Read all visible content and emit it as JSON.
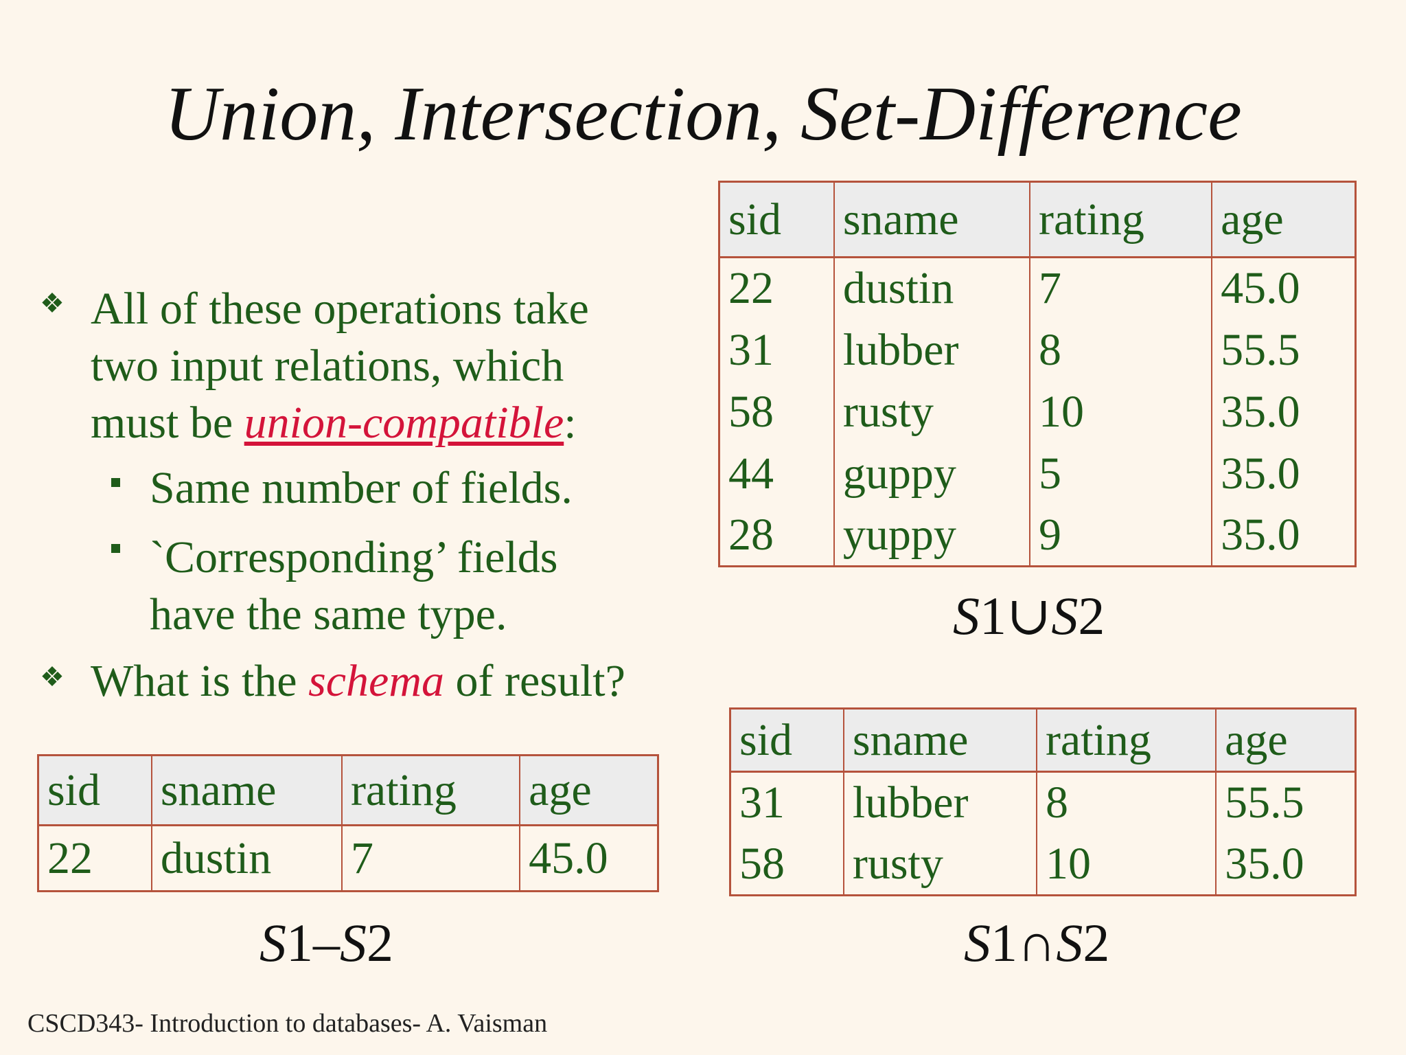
{
  "title": "Union, Intersection, Set-Difference",
  "bullets": {
    "b1": {
      "line1": "All of these operations take",
      "line2": "two input relations, which",
      "line3_pre": "must be ",
      "line3_emph": "union-compatible",
      "line3_post": ":"
    },
    "sub1": "Same number of fields.",
    "sub2_line1": "`Corresponding’ fields",
    "sub2_line2": "have the same type.",
    "b2_pre": "What is the ",
    "b2_emph": "schema",
    "b2_post": " of result?",
    "diamond_icon": "❖",
    "colors": {
      "text": "#1f5c1a",
      "emphasis": "#d4143a",
      "border": "#b5533c",
      "header_bg": "#ececec"
    }
  },
  "union_table": {
    "headers": [
      "sid",
      "sname",
      "rating",
      "age"
    ],
    "rows": [
      [
        "22",
        "dustin",
        "7",
        "45.0"
      ],
      [
        "31",
        "lubber",
        "8",
        "55.5"
      ],
      [
        "58",
        "rusty",
        "10",
        "35.0"
      ],
      [
        "44",
        "guppy",
        "5",
        "35.0"
      ],
      [
        "28",
        "yuppy",
        "9",
        "35.0"
      ]
    ],
    "caption": {
      "a": "S",
      "n1": "1",
      "op": "∪",
      "b": "S",
      "n2": "2"
    }
  },
  "difference_table": {
    "headers": [
      "sid",
      "sname",
      "rating",
      "age"
    ],
    "rows": [
      [
        "22",
        "dustin",
        "7",
        "45.0"
      ]
    ],
    "caption": {
      "a": "S",
      "n1": "1",
      "op": "–",
      "b": "S",
      "n2": "2"
    }
  },
  "intersection_table": {
    "headers": [
      "sid",
      "sname",
      "rating",
      "age"
    ],
    "rows": [
      [
        "31",
        "lubber",
        "8",
        "55.5"
      ],
      [
        "58",
        "rusty",
        "10",
        "35.0"
      ]
    ],
    "caption": {
      "a": "S",
      "n1": "1",
      "op": "∩",
      "b": "S",
      "n2": "2"
    }
  },
  "footer": "CSCD343- Introduction to databases- A. Vaisman"
}
